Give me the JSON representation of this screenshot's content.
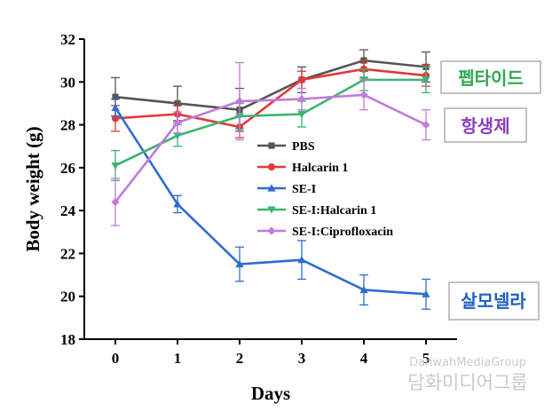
{
  "chart_data": {
    "type": "line",
    "title": "",
    "xlabel": "Days",
    "ylabel": "Body weight (g)",
    "x": [
      0,
      1,
      2,
      3,
      4,
      5
    ],
    "xlim": [
      -0.5,
      5.5
    ],
    "ylim": [
      18,
      32
    ],
    "yticks": [
      18,
      20,
      22,
      24,
      26,
      28,
      30,
      32
    ],
    "grid": false,
    "legend_position": "center-right",
    "series": [
      {
        "name": "PBS",
        "color": "#555555",
        "marker": "square",
        "values": [
          29.3,
          29.0,
          28.7,
          30.1,
          31.0,
          30.7
        ],
        "errors": [
          0.9,
          0.8,
          1.0,
          0.6,
          0.5,
          0.7
        ]
      },
      {
        "name": "Halcarin 1",
        "color": "#e03a3a",
        "marker": "circle",
        "values": [
          28.3,
          28.5,
          27.9,
          30.1,
          30.6,
          30.3
        ],
        "errors": [
          0.6,
          0.4,
          0.5,
          0.4,
          0.4,
          0.5
        ]
      },
      {
        "name": "SE-I",
        "color": "#2f6ccf",
        "marker": "triangle",
        "values": [
          28.8,
          24.3,
          21.5,
          21.7,
          20.3,
          20.1
        ],
        "errors": [
          0.4,
          0.4,
          0.8,
          0.9,
          0.7,
          0.7
        ]
      },
      {
        "name": "SE-I:Halcarin 1",
        "color": "#3cb371",
        "marker": "triangle-down",
        "values": [
          26.1,
          27.5,
          28.4,
          28.5,
          30.1,
          30.1
        ],
        "errors": [
          0.7,
          0.5,
          0.6,
          0.6,
          0.5,
          0.6
        ]
      },
      {
        "name": "SE-I:Ciprofloxacin",
        "color": "#c27bdc",
        "marker": "diamond",
        "values": [
          24.4,
          28.1,
          29.1,
          29.2,
          29.4,
          28.0
        ],
        "errors": [
          1.1,
          0.5,
          1.8,
          0.5,
          0.7,
          0.7
        ]
      }
    ]
  },
  "callouts": {
    "peptide": {
      "text": "펩타이드",
      "color": "#2ea84f"
    },
    "antibiotic": {
      "text": "항생제",
      "color": "#8b3fbf"
    },
    "salmonella": {
      "text": "살모넬라",
      "color": "#1d5fbf"
    }
  },
  "watermark": {
    "line1": "DanwahMediaGroup",
    "line2": "담화미디어그룹"
  }
}
